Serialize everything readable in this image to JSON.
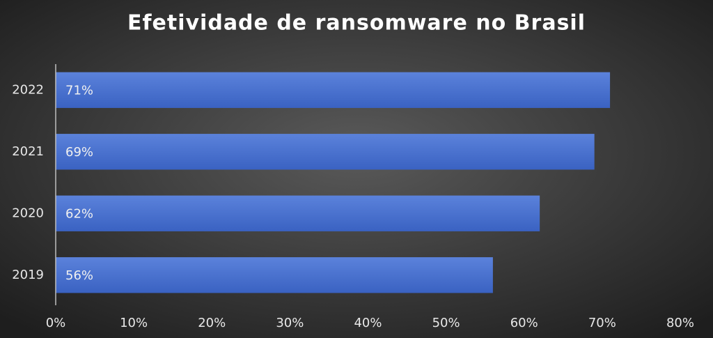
{
  "chart_data": {
    "type": "bar",
    "orientation": "horizontal",
    "title": "Efetividade de ransomware no Brasil",
    "categories": [
      "2022",
      "2021",
      "2020",
      "2019"
    ],
    "values": [
      71,
      69,
      62,
      56
    ],
    "value_labels": [
      "71%",
      "69%",
      "62%",
      "56%"
    ],
    "color": "#4472c4",
    "xlim": [
      0,
      80
    ],
    "xticks": [
      {
        "value": 0,
        "label": "0%"
      },
      {
        "value": 10,
        "label": "10%"
      },
      {
        "value": 20,
        "label": "20%"
      },
      {
        "value": 30,
        "label": "30%"
      },
      {
        "value": 40,
        "label": "40%"
      },
      {
        "value": 50,
        "label": "50%"
      },
      {
        "value": 60,
        "label": "60%"
      },
      {
        "value": 70,
        "label": "70%"
      },
      {
        "value": 80,
        "label": "80%"
      }
    ],
    "grid": false
  }
}
